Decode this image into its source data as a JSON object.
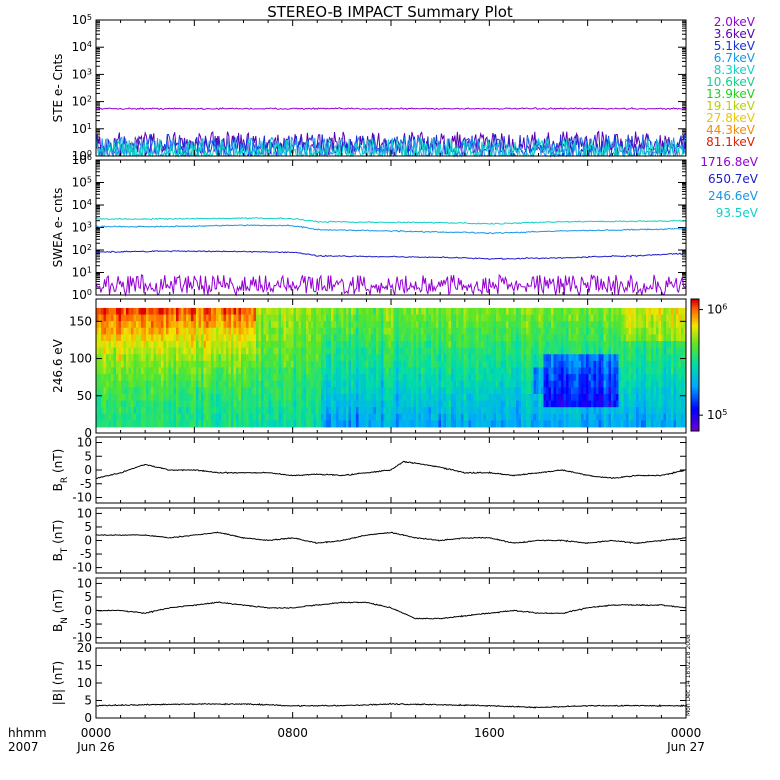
{
  "title": "STEREO-B IMPACT Summary Plot",
  "time_axis": {
    "hhmm_label": "hhmm",
    "year_label": "2007",
    "ticks": [
      {
        "hour": 0,
        "label": "0000",
        "date": "Jun 26"
      },
      {
        "hour": 8,
        "label": "0800",
        "date": ""
      },
      {
        "hour": 16,
        "label": "1600",
        "date": ""
      },
      {
        "hour": 24,
        "label": "0000",
        "date": "Jun 27"
      }
    ],
    "range_hours": [
      0,
      24
    ]
  },
  "legend_ste": [
    {
      "label": "2.0keV",
      "color": "#9400d3"
    },
    {
      "label": "3.6keV",
      "color": "#5a00b4"
    },
    {
      "label": "5.1keV",
      "color": "#1c2fdc"
    },
    {
      "label": "6.7keV",
      "color": "#1696e8"
    },
    {
      "label": "8.3keV",
      "color": "#10d0c8"
    },
    {
      "label": "10.6keV",
      "color": "#10d28a"
    },
    {
      "label": "13.9keV",
      "color": "#1cd21c"
    },
    {
      "label": "19.1keV",
      "color": "#b4d200"
    },
    {
      "label": "27.8keV",
      "color": "#e8c800"
    },
    {
      "label": "44.3keV",
      "color": "#f08c00"
    },
    {
      "label": "81.1keV",
      "color": "#e01e00"
    }
  ],
  "legend_swea": [
    {
      "label": "1716.8eV",
      "color": "#9400d3"
    },
    {
      "label": "650.7eV",
      "color": "#1c1cc8"
    },
    {
      "label": "246.6eV",
      "color": "#1696e8"
    },
    {
      "label": "93.5eV",
      "color": "#10d0c8"
    }
  ],
  "timestamp": "Mon Dec 14 18:02:18 2008",
  "chart_data": [
    {
      "type": "line",
      "panel": "STE",
      "ylabel": "STE e- Cnts",
      "yscale": "log",
      "ylim": [
        1,
        100000
      ],
      "y_tick_exponents": [
        0,
        1,
        2,
        3,
        4,
        5
      ],
      "series": [
        {
          "name": "2.0keV",
          "color": "#9400d3",
          "level": 55
        },
        {
          "name": "3.6keV",
          "color": "#5a00b4",
          "level": 2.0
        },
        {
          "name": "5.1keV",
          "color": "#1c2fdc",
          "level": 1.6
        },
        {
          "name": "6.7keV",
          "color": "#1696e8",
          "level": 1.2
        },
        {
          "name": "8.3keV",
          "color": "#10d0c8",
          "level": 1.1
        }
      ]
    },
    {
      "type": "line",
      "panel": "SWEA",
      "ylabel": "SWEA e- cnts",
      "yscale": "log",
      "ylim": [
        1,
        1000000
      ],
      "y_tick_exponents": [
        0,
        1,
        2,
        3,
        4,
        5,
        6
      ],
      "series": [
        {
          "name": "93.5eV",
          "color": "#10d0c8",
          "x": [
            0,
            3,
            6,
            8,
            9,
            12,
            15,
            16,
            19,
            22,
            24
          ],
          "y": [
            2400,
            2400,
            2600,
            2500,
            1800,
            1700,
            1600,
            1450,
            1800,
            1900,
            2000
          ]
        },
        {
          "name": "246.6eV",
          "color": "#1696e8",
          "x": [
            0,
            3,
            6,
            8,
            9,
            12,
            15,
            16,
            19,
            22,
            24
          ],
          "y": [
            1100,
            1100,
            1250,
            1200,
            800,
            700,
            600,
            550,
            700,
            800,
            900
          ]
        },
        {
          "name": "650.7eV",
          "color": "#1c1cc8",
          "x": [
            0,
            3,
            6,
            8,
            9,
            12,
            15,
            16,
            19,
            22,
            24
          ],
          "y": [
            80,
            90,
            85,
            80,
            55,
            50,
            45,
            40,
            45,
            55,
            70
          ]
        },
        {
          "name": "1716.8eV",
          "color": "#9400d3",
          "x": [
            0,
            24
          ],
          "y": [
            2,
            2
          ]
        }
      ]
    },
    {
      "type": "heatmap",
      "panel": "pitch-angle",
      "ylabel": "246.6 eV",
      "ylim": [
        0,
        180
      ],
      "y_ticks": [
        0,
        50,
        100,
        150
      ],
      "colorbar_ticks": [
        {
          "value": "10^6",
          "base": "10",
          "exp": "6"
        },
        {
          "value": "10^5",
          "base": "10",
          "exp": "5"
        }
      ],
      "colorbar_range_log": [
        4.85,
        6.1
      ]
    },
    {
      "type": "line",
      "panel": "BR",
      "ylabel": "B_R (nT)",
      "ylabel_main": "B",
      "ylabel_sub": "R",
      "ylabel_unit": " (nT)",
      "ylim": [
        -12,
        12
      ],
      "y_ticks": [
        10,
        5,
        0,
        -5,
        -10
      ],
      "x": [
        0,
        1,
        2,
        3,
        4,
        5,
        6,
        7,
        8,
        9,
        10,
        11,
        12,
        12.5,
        13,
        14,
        15,
        16,
        17,
        18,
        19,
        20,
        21,
        22,
        23,
        23.5,
        24
      ],
      "y": [
        -3,
        -1,
        2,
        0,
        0,
        -1,
        -1,
        -1,
        -2,
        -1.5,
        -2,
        -1,
        0,
        3,
        2.5,
        1,
        -1,
        -1,
        -2,
        -1,
        0,
        -2,
        -3,
        -2,
        -2,
        -1,
        0
      ]
    },
    {
      "type": "line",
      "panel": "BT",
      "ylabel": "B_T (nT)",
      "ylabel_main": "B",
      "ylabel_sub": "T",
      "ylabel_unit": " (nT)",
      "ylim": [
        -12,
        12
      ],
      "y_ticks": [
        10,
        5,
        0,
        -5,
        -10
      ],
      "x": [
        0,
        1,
        2,
        3,
        4,
        5,
        6,
        7,
        8,
        9,
        10,
        11,
        12,
        13,
        14,
        15,
        16,
        17,
        18,
        19,
        20,
        21,
        22,
        23,
        24
      ],
      "y": [
        2,
        2,
        2,
        1,
        2,
        3,
        1,
        0,
        1,
        -1,
        0,
        2,
        3,
        1,
        0,
        1,
        1,
        -1,
        0,
        0,
        -1,
        0,
        -1,
        0,
        1
      ]
    },
    {
      "type": "line",
      "panel": "BN",
      "ylabel": "B_N (nT)",
      "ylabel_main": "B",
      "ylabel_sub": "N",
      "ylabel_unit": " (nT)",
      "ylim": [
        -12,
        12
      ],
      "y_ticks": [
        10,
        5,
        0,
        -5,
        -10
      ],
      "x": [
        0,
        1,
        2,
        3,
        4,
        5,
        6,
        7,
        8,
        9,
        10,
        11,
        12,
        13,
        14,
        15,
        16,
        17,
        18,
        19,
        20,
        21,
        22,
        23,
        24
      ],
      "y": [
        0,
        0,
        -1,
        1,
        2,
        3,
        2,
        1,
        1,
        2,
        3,
        3,
        1,
        -3,
        -3,
        -2,
        -1,
        0,
        -1,
        -1,
        1,
        2,
        2,
        2,
        1
      ]
    },
    {
      "type": "line",
      "panel": "B",
      "ylabel": "|B| (nT)",
      "ylim": [
        0,
        20
      ],
      "y_ticks": [
        20,
        15,
        10,
        5,
        0
      ],
      "x": [
        0,
        2,
        4,
        6,
        8,
        10,
        12,
        14,
        16,
        18,
        20,
        22,
        24
      ],
      "y": [
        3.5,
        3.8,
        4,
        4,
        3.5,
        3.5,
        4,
        3.8,
        3.5,
        3,
        3.5,
        3.5,
        3.5
      ]
    }
  ]
}
